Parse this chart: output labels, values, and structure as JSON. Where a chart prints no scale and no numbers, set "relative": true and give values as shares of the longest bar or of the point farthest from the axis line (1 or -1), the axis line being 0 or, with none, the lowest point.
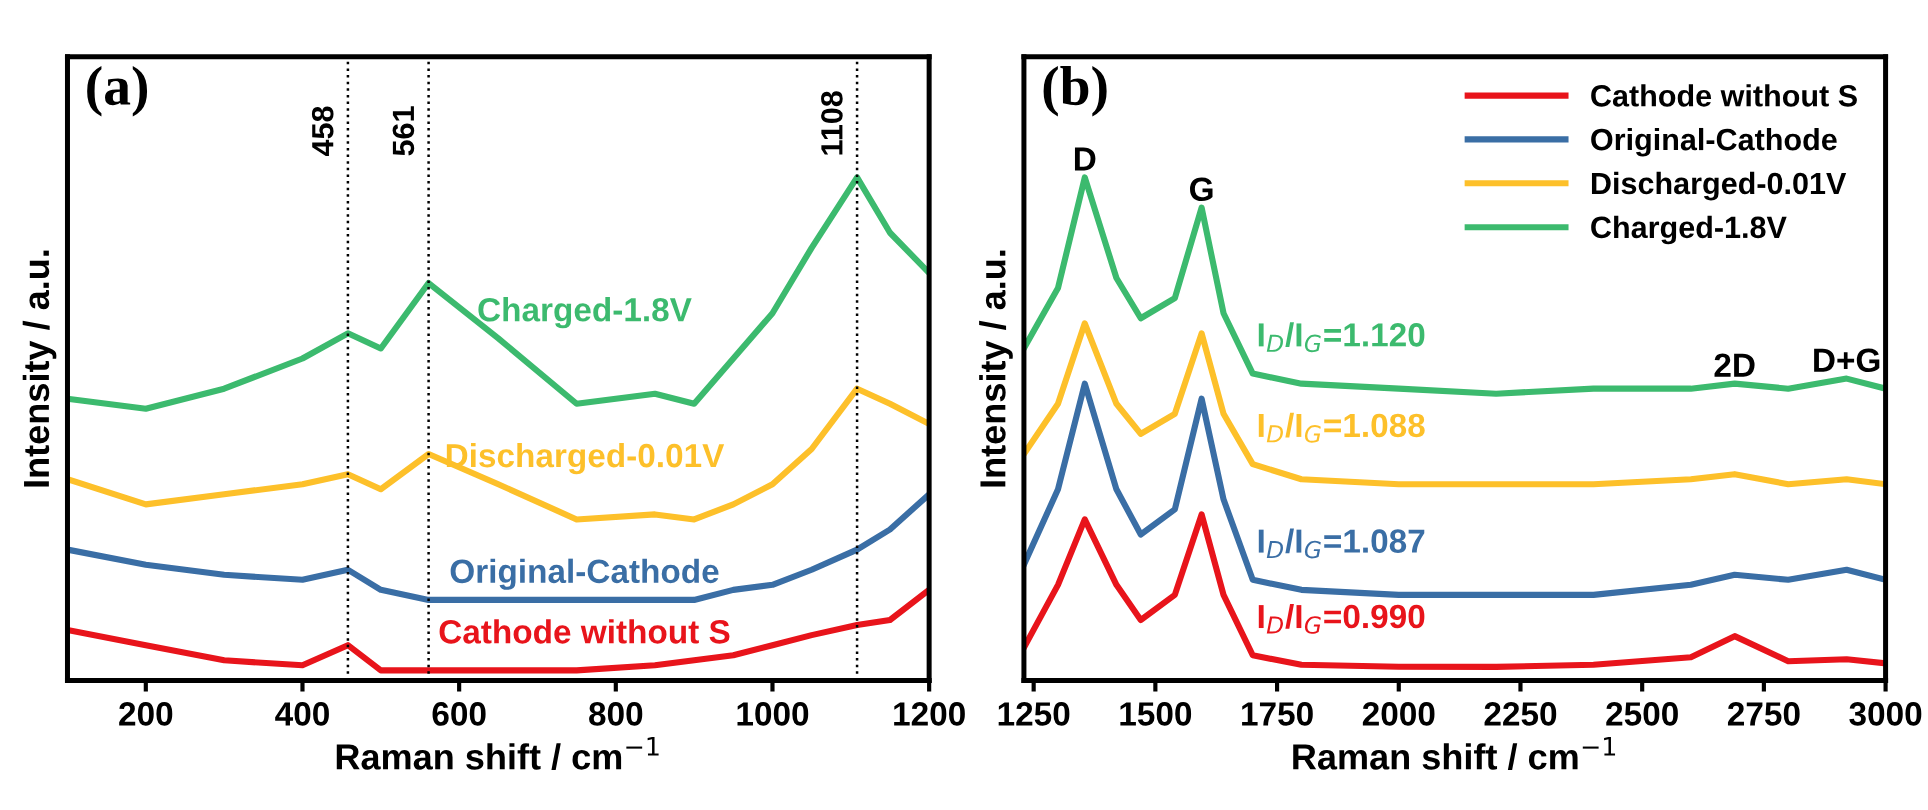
{
  "chart_data": [
    {
      "type": "line",
      "relative": true,
      "xlabel": "Raman shift / cm$^{−1}$",
      "ylabel": "Intensity / a.u.",
      "annotations": [
        "(a)"
      ],
      "x": [
        100,
        200,
        300,
        400,
        458,
        500,
        561,
        650,
        750,
        850,
        900,
        950,
        1000,
        1050,
        1108,
        1150,
        1200
      ],
      "xlim": [
        100,
        1200
      ],
      "xticks": [
        200,
        400,
        600,
        800,
        1000,
        1200
      ],
      "tick_labels": "x",
      "legend": false,
      "grid": false,
      "line_style": "solid",
      "ref_lines": [
        {
          "axis": "x",
          "value": 458,
          "label": "458",
          "line_style": "dotted",
          "color": "#000000"
        },
        {
          "axis": "x",
          "value": 561,
          "label": "561",
          "line_style": "dotted",
          "color": "#000000"
        },
        {
          "axis": "x",
          "value": 1108,
          "label": "1108",
          "line_style": "dotted",
          "color": "#000000"
        }
      ],
      "series": [
        {
          "name": "Cathode without S",
          "color": "#e8141b",
          "values": [
            0.1,
            0.07,
            0.04,
            0.03,
            0.07,
            0.02,
            0.02,
            0.02,
            0.02,
            0.03,
            0.04,
            0.05,
            0.07,
            0.09,
            0.11,
            0.12,
            0.18
          ]
        },
        {
          "name": "Original-Cathode",
          "color": "#3a6ea5",
          "values": [
            0.26,
            0.23,
            0.21,
            0.2,
            0.22,
            0.18,
            0.16,
            0.16,
            0.16,
            0.16,
            0.16,
            0.18,
            0.19,
            0.22,
            0.26,
            0.3,
            0.37
          ]
        },
        {
          "name": "Discharged-0.01V",
          "color": "#fdc02a",
          "values": [
            0.4,
            0.35,
            0.37,
            0.39,
            0.41,
            0.38,
            0.45,
            0.39,
            0.32,
            0.33,
            0.32,
            0.35,
            0.39,
            0.46,
            0.58,
            0.55,
            0.51
          ]
        },
        {
          "name": "Charged-1.8V",
          "color": "#3cba6e",
          "values": [
            0.56,
            0.54,
            0.58,
            0.64,
            0.69,
            0.66,
            0.79,
            0.68,
            0.55,
            0.57,
            0.55,
            0.64,
            0.73,
            0.86,
            1.0,
            0.89,
            0.81
          ]
        }
      ]
    },
    {
      "type": "line",
      "relative": true,
      "xlabel": "Raman shift / cm$^{−1}$",
      "ylabel": "Intensity / a.u.",
      "annotations": [
        "(b)",
        {
          "text": "D",
          "x": 1355,
          "y": 1.0
        },
        {
          "text": "G",
          "x": 1595,
          "y": 0.94
        },
        {
          "text": "2D",
          "x": 2690,
          "y": 0.59
        },
        {
          "text": "D+G",
          "x": 2920,
          "y": 0.6
        },
        "I$_{D}$/I$_{G}$=1.120",
        "I$_{D}$/I$_{G}$=1.088",
        "I$_{D}$/I$_{G}$=1.087",
        "I$_{D}$/I$_{G}$=0.990"
      ],
      "x": [
        1230,
        1300,
        1355,
        1420,
        1470,
        1540,
        1595,
        1640,
        1700,
        1800,
        2000,
        2200,
        2400,
        2600,
        2690,
        2800,
        2920,
        3000
      ],
      "xlim": [
        1230,
        3000
      ],
      "xticks": [
        1250,
        1500,
        1750,
        2000,
        2250,
        2500,
        2750,
        3000
      ],
      "tick_labels": "x",
      "legend": "top right",
      "grid": false,
      "line_style": "solid",
      "series": [
        {
          "name": "Cathode without S",
          "color": "#e8141b",
          "values": [
            0.065,
            0.19,
            0.32,
            0.19,
            0.12,
            0.17,
            0.33,
            0.17,
            0.05,
            0.031,
            0.027,
            0.027,
            0.031,
            0.046,
            0.088,
            0.038,
            0.042,
            0.034
          ]
        },
        {
          "name": "Original-Cathode",
          "color": "#3a6ea5",
          "values": [
            0.23,
            0.38,
            0.59,
            0.38,
            0.29,
            0.34,
            0.56,
            0.36,
            0.2,
            0.18,
            0.17,
            0.17,
            0.17,
            0.19,
            0.21,
            0.2,
            0.22,
            0.2
          ]
        },
        {
          "name": "Discharged-0.01V",
          "color": "#fdc02a",
          "values": [
            0.45,
            0.55,
            0.71,
            0.55,
            0.49,
            0.53,
            0.69,
            0.53,
            0.43,
            0.4,
            0.39,
            0.39,
            0.39,
            0.4,
            0.41,
            0.39,
            0.4,
            0.39
          ]
        },
        {
          "name": "Charged-1.8V",
          "color": "#3cba6e",
          "values": [
            0.66,
            0.78,
            1.0,
            0.8,
            0.72,
            0.76,
            0.94,
            0.73,
            0.61,
            0.59,
            0.58,
            0.57,
            0.58,
            0.58,
            0.59,
            0.58,
            0.6,
            0.58
          ]
        }
      ]
    }
  ]
}
